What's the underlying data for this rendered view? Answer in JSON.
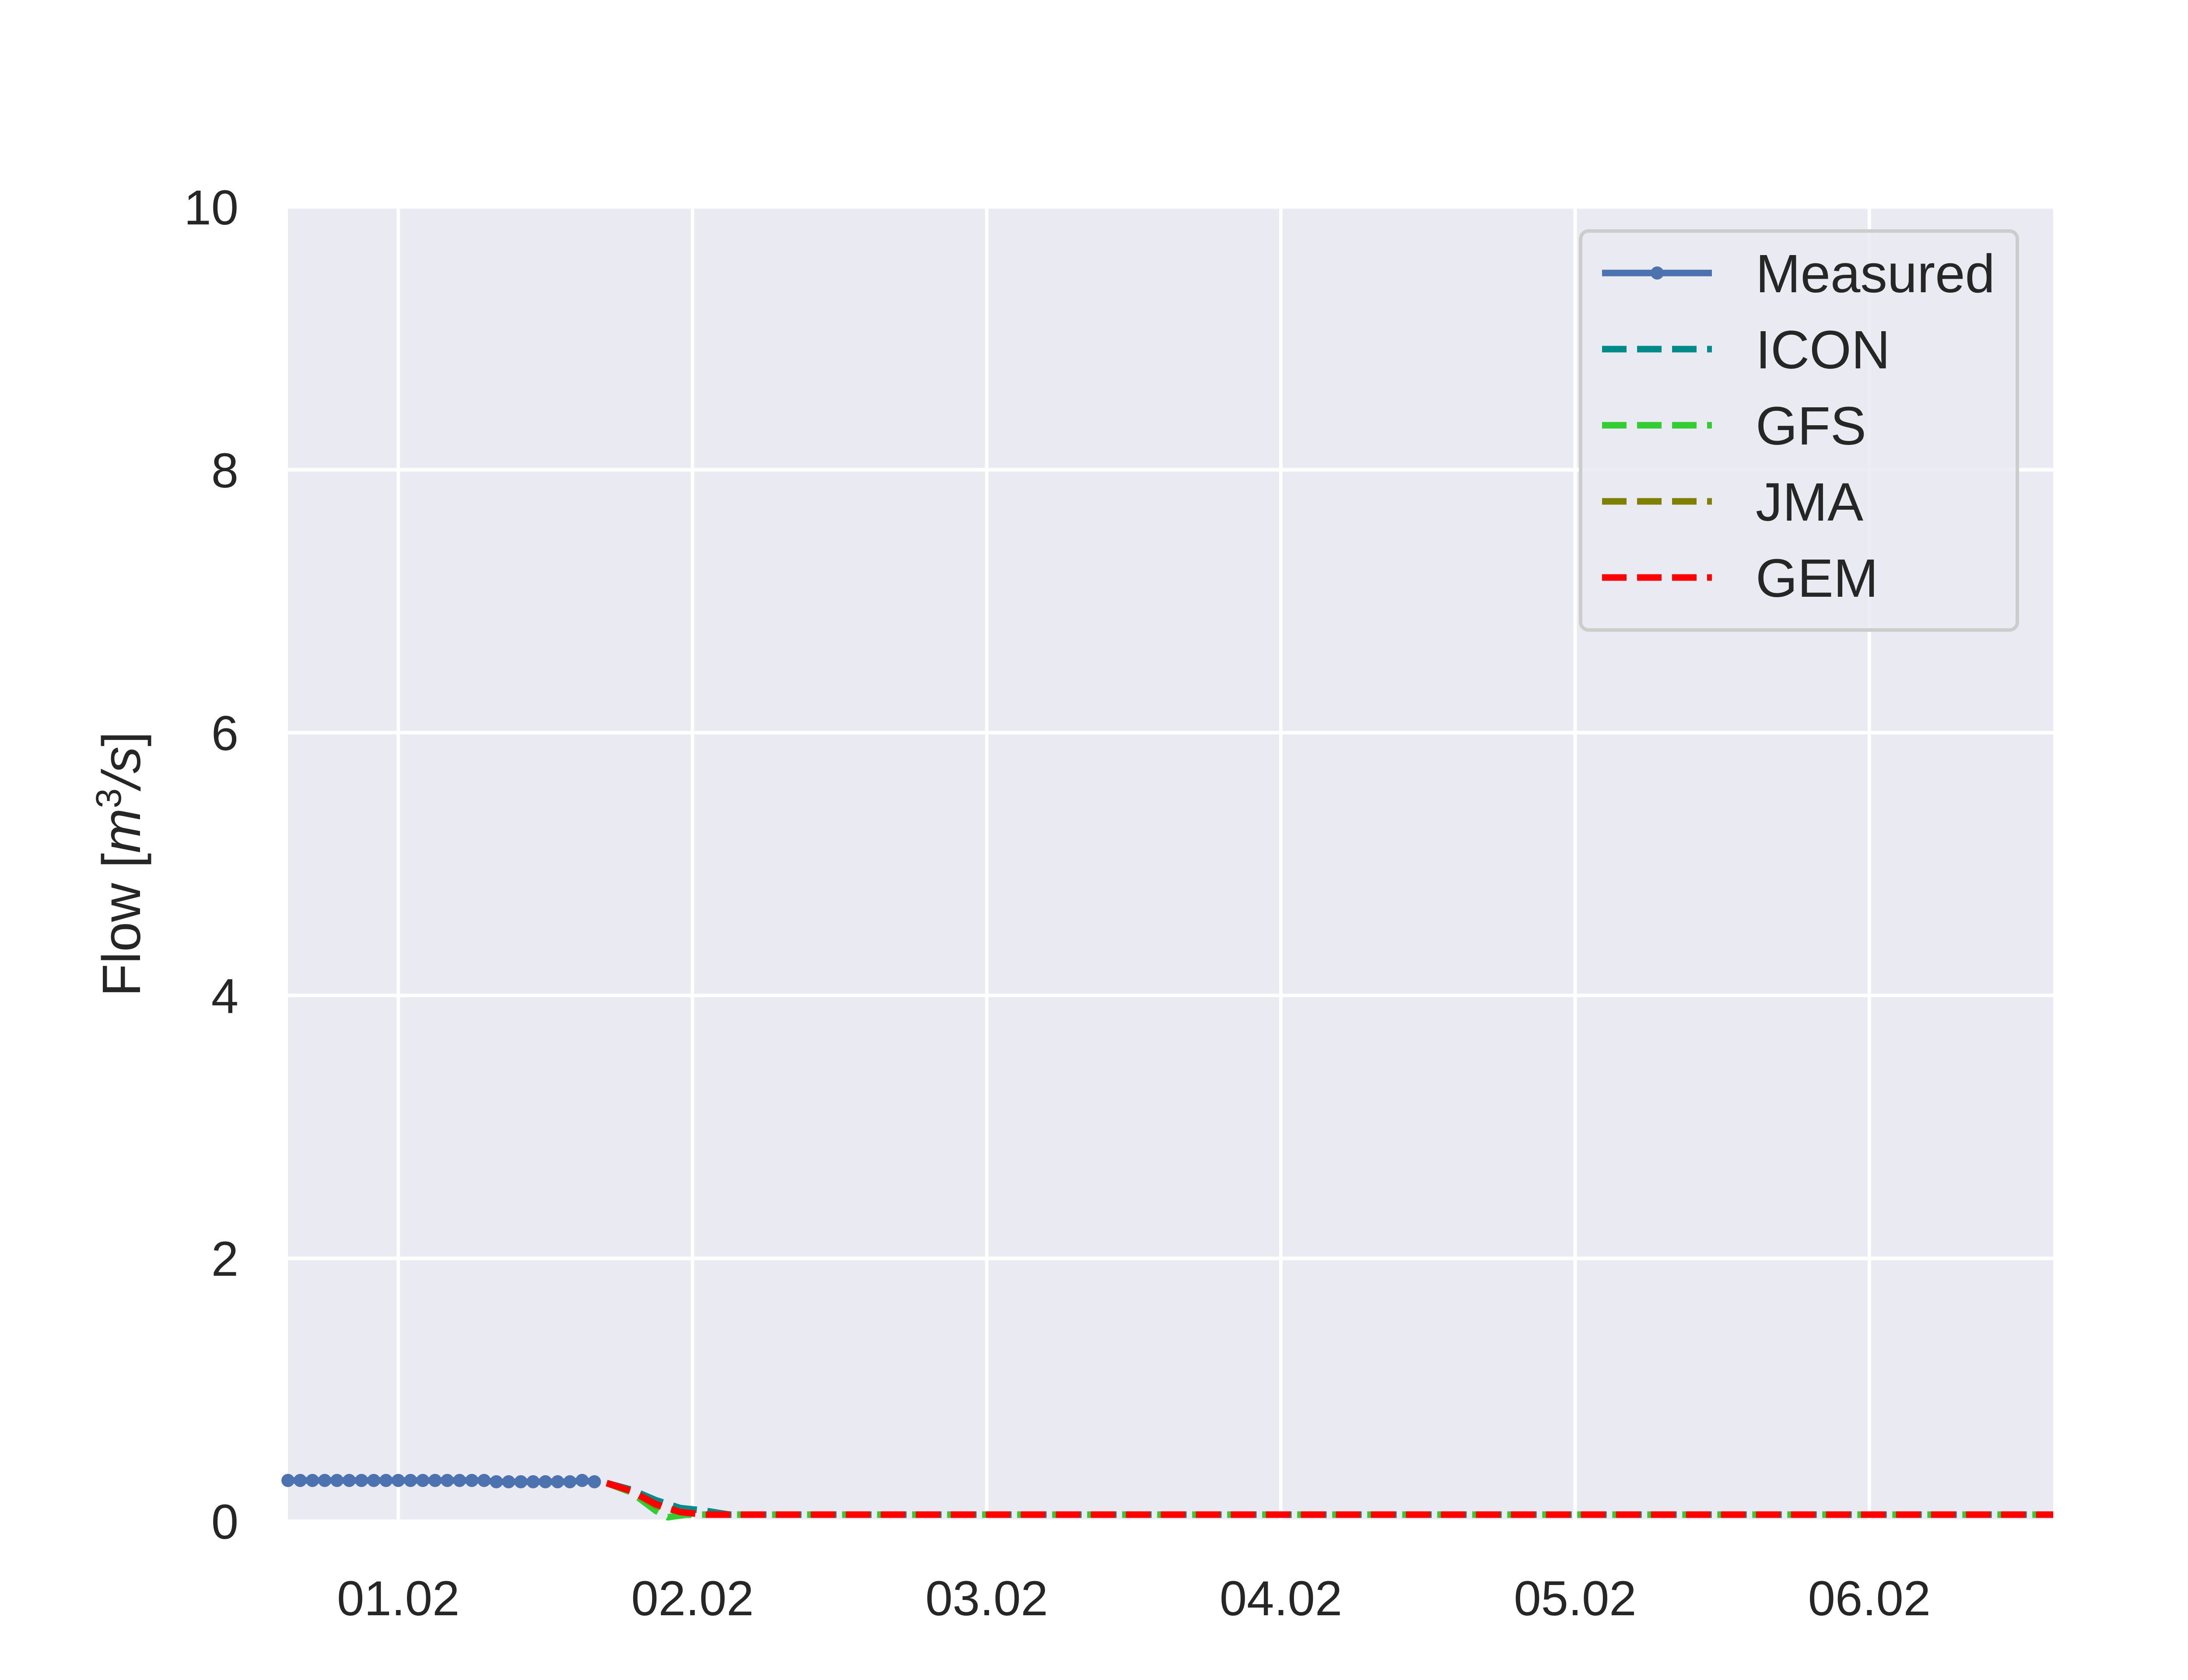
{
  "chart_data": {
    "type": "line",
    "title": "",
    "xlabel": "",
    "ylabel": {
      "text": "Flow [",
      "unit_base": "m",
      "unit_sup": "3",
      "unit_tail": "/s",
      "close": "]"
    },
    "xlim": [
      "2023-01-31T15:00",
      "2023-02-06T15:00"
    ],
    "ylim": [
      0,
      10
    ],
    "yticks": [
      0,
      2,
      4,
      6,
      8,
      10
    ],
    "xticks": [
      {
        "date": "2023-02-01T00:00",
        "label": "01.02"
      },
      {
        "date": "2023-02-02T00:00",
        "label": "02.02"
      },
      {
        "date": "2023-02-03T00:00",
        "label": "03.02"
      },
      {
        "date": "2023-02-04T00:00",
        "label": "04.02"
      },
      {
        "date": "2023-02-05T00:00",
        "label": "05.02"
      },
      {
        "date": "2023-02-06T00:00",
        "label": "06.02"
      }
    ],
    "grid": true,
    "legend_position": "top-right",
    "series": [
      {
        "name": "Measured",
        "color": "#4C72B0",
        "style": "solid-marker",
        "points": [
          [
            "2023-01-31T15:00",
            0.31
          ],
          [
            "2023-01-31T16:00",
            0.31
          ],
          [
            "2023-01-31T17:00",
            0.31
          ],
          [
            "2023-01-31T18:00",
            0.31
          ],
          [
            "2023-01-31T19:00",
            0.31
          ],
          [
            "2023-01-31T20:00",
            0.31
          ],
          [
            "2023-01-31T21:00",
            0.31
          ],
          [
            "2023-01-31T22:00",
            0.31
          ],
          [
            "2023-01-31T23:00",
            0.31
          ],
          [
            "2023-02-01T00:00",
            0.31
          ],
          [
            "2023-02-01T01:00",
            0.31
          ],
          [
            "2023-02-01T02:00",
            0.31
          ],
          [
            "2023-02-01T03:00",
            0.31
          ],
          [
            "2023-02-01T04:00",
            0.31
          ],
          [
            "2023-02-01T05:00",
            0.31
          ],
          [
            "2023-02-01T06:00",
            0.31
          ],
          [
            "2023-02-01T07:00",
            0.31
          ],
          [
            "2023-02-01T08:00",
            0.3
          ],
          [
            "2023-02-01T09:00",
            0.3
          ],
          [
            "2023-02-01T10:00",
            0.3
          ],
          [
            "2023-02-01T11:00",
            0.3
          ],
          [
            "2023-02-01T12:00",
            0.3
          ],
          [
            "2023-02-01T13:00",
            0.3
          ],
          [
            "2023-02-01T14:00",
            0.3
          ],
          [
            "2023-02-01T15:00",
            0.31
          ],
          [
            "2023-02-01T16:00",
            0.3
          ]
        ]
      },
      {
        "name": "ICON",
        "color": "#008B8B",
        "style": "dashed",
        "points": [
          [
            "2023-02-01T17:00",
            0.29
          ],
          [
            "2023-02-01T19:00",
            0.24
          ],
          [
            "2023-02-01T21:00",
            0.16
          ],
          [
            "2023-02-01T23:00",
            0.1
          ],
          [
            "2023-02-02T01:00",
            0.08
          ],
          [
            "2023-02-02T03:00",
            0.05
          ],
          [
            "2023-02-06T15:00",
            0.05
          ]
        ]
      },
      {
        "name": "GFS",
        "color": "#32CD32",
        "style": "dashed",
        "points": [
          [
            "2023-02-01T17:00",
            0.29
          ],
          [
            "2023-02-01T19:00",
            0.22
          ],
          [
            "2023-02-01T21:00",
            0.08
          ],
          [
            "2023-02-01T22:00",
            0.03
          ],
          [
            "2023-02-01T23:30",
            0.05
          ],
          [
            "2023-02-06T15:00",
            0.05
          ]
        ]
      },
      {
        "name": "JMA",
        "color": "#808000",
        "style": "dashed",
        "points": [
          [
            "2023-02-01T17:00",
            0.29
          ],
          [
            "2023-02-01T19:00",
            0.23
          ],
          [
            "2023-02-01T21:00",
            0.12
          ],
          [
            "2023-02-01T23:00",
            0.07
          ],
          [
            "2023-02-02T01:00",
            0.05
          ],
          [
            "2023-02-06T15:00",
            0.05
          ]
        ]
      },
      {
        "name": "GEM",
        "color": "#FF0000",
        "style": "dashed",
        "points": [
          [
            "2023-02-01T17:00",
            0.29
          ],
          [
            "2023-02-01T19:00",
            0.23
          ],
          [
            "2023-02-01T21:00",
            0.13
          ],
          [
            "2023-02-01T23:00",
            0.07
          ],
          [
            "2023-02-02T01:00",
            0.05
          ],
          [
            "2023-02-06T15:00",
            0.05
          ]
        ]
      }
    ]
  }
}
